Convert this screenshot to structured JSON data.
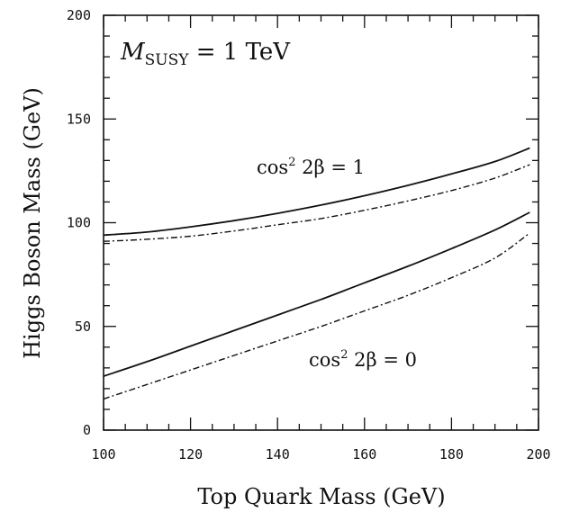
{
  "chart_data": {
    "type": "line",
    "xlabel": "Top Quark Mass (GeV)",
    "ylabel": "Higgs Boson Mass (GeV)",
    "xlim": [
      100,
      200
    ],
    "ylim": [
      0,
      200
    ],
    "x_ticks": [
      100,
      120,
      140,
      160,
      180,
      200
    ],
    "y_ticks": [
      0,
      50,
      100,
      150,
      200
    ],
    "grid": false,
    "annotations": {
      "msusy": {
        "main": "M",
        "sub": "SUSY",
        "rest": " = 1 TeV"
      },
      "cos1": {
        "prefix": "cos",
        "sup": "2",
        "body": " 2β = 1"
      },
      "cos0": {
        "prefix": "cos",
        "sup": "2",
        "body": " 2β = 0"
      }
    },
    "x": [
      100,
      110,
      120,
      130,
      140,
      150,
      160,
      170,
      180,
      190,
      198
    ],
    "series": [
      {
        "group": "cos2 2beta = 1",
        "style": "solid",
        "values": [
          94,
          95.5,
          98,
          101,
          104.5,
          108.5,
          113,
          118,
          123.5,
          129.5,
          136
        ]
      },
      {
        "group": "cos2 2beta = 1",
        "style": "dashdot",
        "values": [
          91,
          92,
          93.5,
          96,
          99,
          102,
          106,
          110.5,
          115.5,
          121.5,
          128
        ]
      },
      {
        "group": "cos2 2beta = 0",
        "style": "solid",
        "values": [
          26,
          33,
          40.5,
          48,
          55.5,
          63,
          71,
          79,
          87.5,
          96.5,
          105
        ]
      },
      {
        "group": "cos2 2beta = 0",
        "style": "dashdot",
        "values": [
          15,
          22,
          29,
          36,
          43,
          50,
          57.5,
          65,
          73.5,
          83,
          95
        ]
      }
    ],
    "line_color": "#111111"
  }
}
